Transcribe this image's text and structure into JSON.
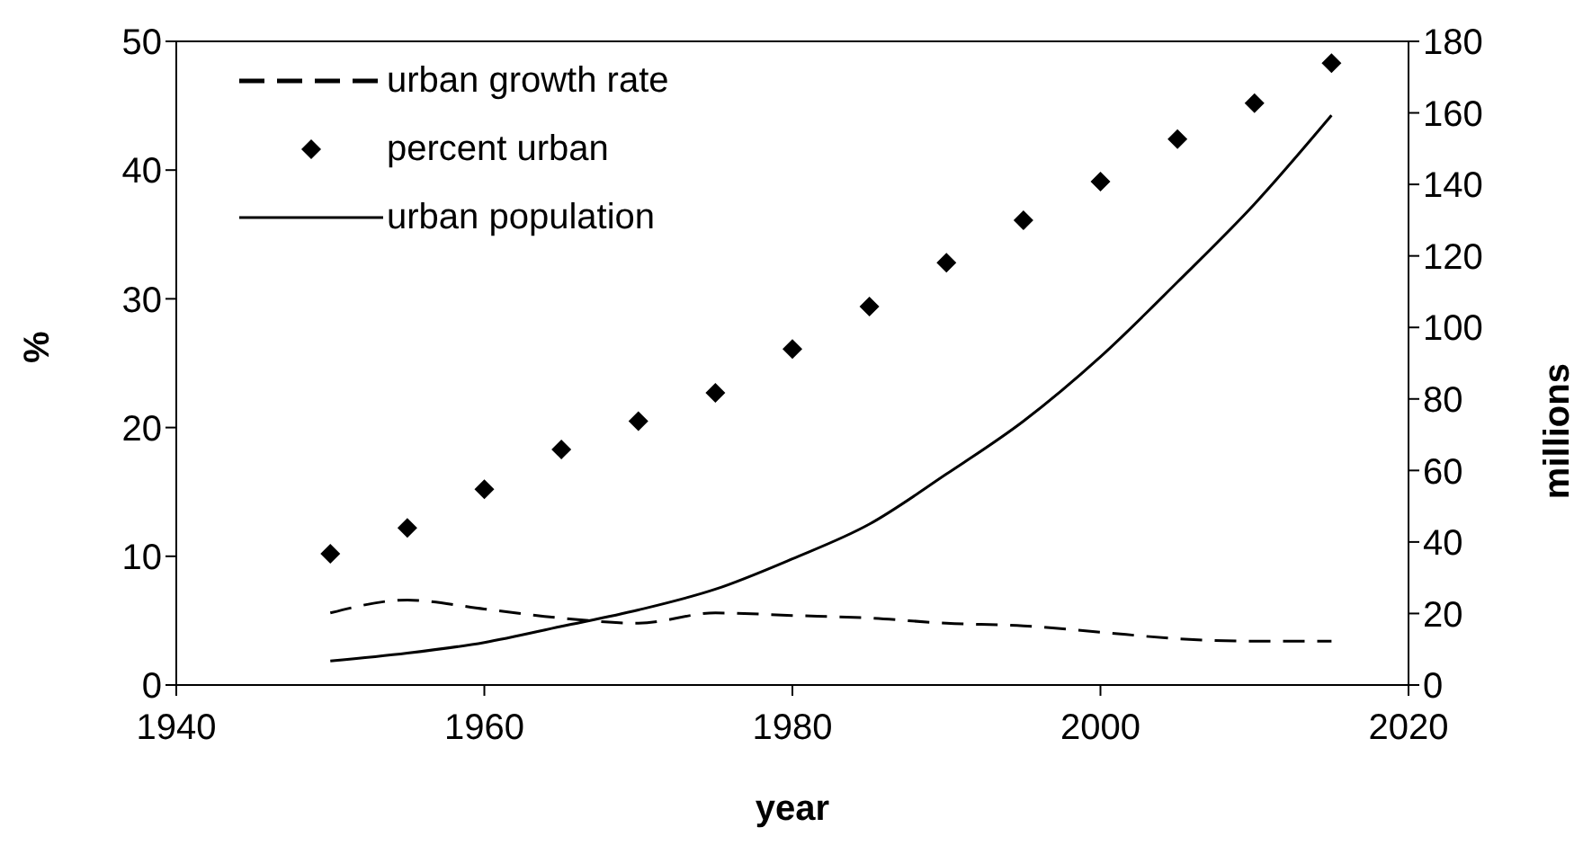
{
  "chart_data": {
    "type": "line",
    "xlabel": "year",
    "ylabel": "%",
    "y2label": "millions",
    "x": [
      1950,
      1955,
      1960,
      1965,
      1970,
      1975,
      1980,
      1985,
      1990,
      1995,
      2000,
      2005,
      2010,
      2015
    ],
    "series": [
      {
        "name": "urban growth rate",
        "line_style": "dashed",
        "color": "#000000",
        "values": [
          5.6,
          6.6,
          5.9,
          5.2,
          4.8,
          5.6,
          5.4,
          5.2,
          4.8,
          4.6,
          4.1,
          3.6,
          3.4,
          3.4
        ]
      },
      {
        "name": "percent urban",
        "type": "scatter",
        "marker": "diamond",
        "color": "#000000",
        "values": [
          10.2,
          12.2,
          15.2,
          18.3,
          20.5,
          22.7,
          26.1,
          29.4,
          32.8,
          36.1,
          39.1,
          42.4,
          45.2,
          48.3
        ]
      },
      {
        "name": "urban population",
        "line_style": "solid",
        "axis": "y2",
        "color": "#000000",
        "values": [
          6.7,
          8.9,
          11.9,
          16.4,
          21,
          26.8,
          35.3,
          45,
          59,
          73.8,
          91.8,
          112.7,
          134.5,
          159.3
        ]
      }
    ],
    "xlim": [
      1940,
      2020
    ],
    "xticks": [
      1940,
      1960,
      1980,
      2000,
      2020
    ],
    "ylim": [
      0,
      50
    ],
    "yticks": [
      0,
      10,
      20,
      30,
      40,
      50
    ],
    "y2lim": [
      0,
      180
    ],
    "y2ticks": [
      0,
      20,
      40,
      60,
      80,
      100,
      120,
      140,
      160,
      180
    ],
    "grid": false,
    "legend": "top left"
  }
}
